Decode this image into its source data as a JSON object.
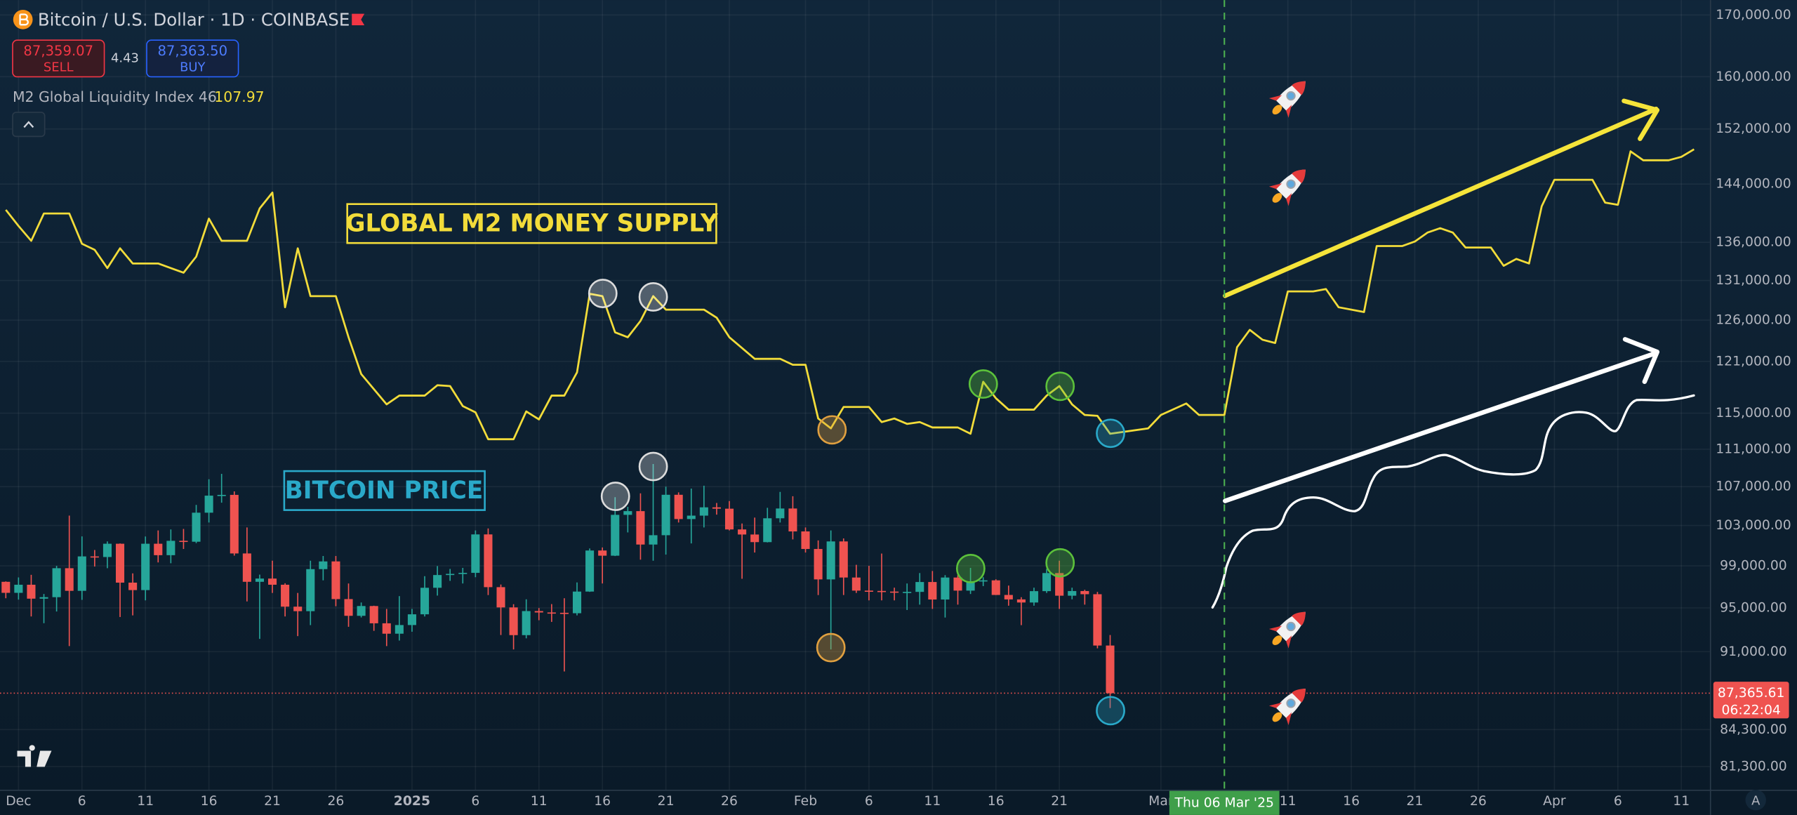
{
  "chart_data": {
    "type": "candlestick",
    "title": "Bitcoin / U.S. Dollar · 1D · COINBASE",
    "quote": {
      "sell": {
        "value": 87359.07,
        "label": "87,359.07"
      },
      "sell_label": "SELL",
      "spread": 4.43,
      "buy": {
        "value": 87363.5,
        "label": "87,363.50"
      },
      "buy_label": "BUY"
    },
    "log_scale": true,
    "grid": true,
    "up_color": "#26a69a",
    "down_color": "#ef5350",
    "xlim": [
      "2024-11-29T13:00:00Z",
      "2025-04-13T06:00:00Z"
    ],
    "ylim": [
      79380,
      172500
    ],
    "yticks": [
      {
        "value": 170000,
        "label": "170,000.00"
      },
      {
        "value": 160000,
        "label": "160,000.00"
      },
      {
        "value": 152000,
        "label": "152,000.00"
      },
      {
        "value": 144000,
        "label": "144,000.00"
      },
      {
        "value": 136000,
        "label": "136,000.00"
      },
      {
        "value": 131000,
        "label": "131,000.00"
      },
      {
        "value": 126000,
        "label": "126,000.00"
      },
      {
        "value": 121000,
        "label": "121,000.00"
      },
      {
        "value": 115000,
        "label": "115,000.00"
      },
      {
        "value": 111000,
        "label": "111,000.00"
      },
      {
        "value": 107000,
        "label": "107,000.00"
      },
      {
        "value": 103000,
        "label": "103,000.00"
      },
      {
        "value": 99000,
        "label": "99,000.00"
      },
      {
        "value": 95000,
        "label": "95,000.00"
      },
      {
        "value": 91000,
        "label": "91,000.00"
      },
      {
        "value": 84300,
        "label": "84,300.00"
      },
      {
        "value": 81300,
        "label": "81,300.00"
      }
    ],
    "xticks": [
      {
        "value": "2024-12-01",
        "label": "Dec"
      },
      {
        "value": "2024-12-06",
        "label": "6"
      },
      {
        "value": "2024-12-11",
        "label": "11"
      },
      {
        "value": "2024-12-16",
        "label": "16"
      },
      {
        "value": "2024-12-21",
        "label": "21"
      },
      {
        "value": "2024-12-26",
        "label": "26"
      },
      {
        "value": "2025-01-01",
        "label": "2025"
      },
      {
        "value": "2025-01-06",
        "label": "6"
      },
      {
        "value": "2025-01-11",
        "label": "11"
      },
      {
        "value": "2025-01-16",
        "label": "16"
      },
      {
        "value": "2025-01-21",
        "label": "21"
      },
      {
        "value": "2025-01-26",
        "label": "26"
      },
      {
        "value": "2025-02-01",
        "label": "Feb"
      },
      {
        "value": "2025-02-06",
        "label": "6"
      },
      {
        "value": "2025-02-11",
        "label": "11"
      },
      {
        "value": "2025-02-16",
        "label": "16"
      },
      {
        "value": "2025-02-21",
        "label": "21"
      },
      {
        "value": "2025-03-01",
        "label": "Mar"
      },
      {
        "value": "2025-03-11",
        "label": "11"
      },
      {
        "value": "2025-03-16",
        "label": "16"
      },
      {
        "value": "2025-03-21",
        "label": "21"
      },
      {
        "value": "2025-03-26",
        "label": "26"
      },
      {
        "value": "2025-04-01",
        "label": "Apr"
      },
      {
        "value": "2025-04-06",
        "label": "6"
      },
      {
        "value": "2025-04-11",
        "label": "11"
      }
    ],
    "x": [
      "2024-11-30",
      "2024-12-01",
      "2024-12-02",
      "2024-12-03",
      "2024-12-04",
      "2024-12-05",
      "2024-12-06",
      "2024-12-07",
      "2024-12-08",
      "2024-12-09",
      "2024-12-10",
      "2024-12-11",
      "2024-12-12",
      "2024-12-13",
      "2024-12-14",
      "2024-12-15",
      "2024-12-16",
      "2024-12-17",
      "2024-12-18",
      "2024-12-19",
      "2024-12-20",
      "2024-12-21",
      "2024-12-22",
      "2024-12-23",
      "2024-12-24",
      "2024-12-25",
      "2024-12-26",
      "2024-12-27",
      "2024-12-28",
      "2024-12-29",
      "2024-12-30",
      "2024-12-31",
      "2025-01-01",
      "2025-01-02",
      "2025-01-03",
      "2025-01-04",
      "2025-01-05",
      "2025-01-06",
      "2025-01-07",
      "2025-01-08",
      "2025-01-09",
      "2025-01-10",
      "2025-01-11",
      "2025-01-12",
      "2025-01-13",
      "2025-01-14",
      "2025-01-15",
      "2025-01-16",
      "2025-01-17",
      "2025-01-18",
      "2025-01-19",
      "2025-01-20",
      "2025-01-21",
      "2025-01-22",
      "2025-01-23",
      "2025-01-24",
      "2025-01-25",
      "2025-01-26",
      "2025-01-27",
      "2025-01-28",
      "2025-01-29",
      "2025-01-30",
      "2025-01-31",
      "2025-02-01",
      "2025-02-02",
      "2025-02-03",
      "2025-02-04",
      "2025-02-05",
      "2025-02-06",
      "2025-02-07",
      "2025-02-08",
      "2025-02-09",
      "2025-02-10",
      "2025-02-11",
      "2025-02-12",
      "2025-02-13",
      "2025-02-14",
      "2025-02-15",
      "2025-02-16",
      "2025-02-17",
      "2025-02-18",
      "2025-02-19",
      "2025-02-20",
      "2025-02-21",
      "2025-02-22",
      "2025-02-23",
      "2025-02-24",
      "2025-02-25"
    ],
    "open": [
      97460,
      96410,
      97180,
      95860,
      96000,
      98770,
      96600,
      99920,
      99860,
      101170,
      97380,
      96670,
      101170,
      100040,
      101460,
      101370,
      104300,
      106060,
      106140,
      100210,
      97460,
      97770,
      97180,
      95110,
      94690,
      98680,
      99430,
      95820,
      94260,
      95170,
      93570,
      92620,
      93410,
      94400,
      96890,
      98110,
      98220,
      98320,
      102100,
      96950,
      95040,
      92490,
      94700,
      94570,
      94540,
      94500,
      96530,
      100500,
      99990,
      104080,
      104460,
      101090,
      102020,
      106150,
      103650,
      104000,
      104850,
      104710,
      102600,
      102090,
      101330,
      103730,
      104730,
      102400,
      100650,
      97690,
      101400,
      97870,
      96620,
      96590,
      96530,
      96480,
      96500,
      97440,
      95780,
      97870,
      96620,
      97510,
      97600,
      96210,
      95790,
      95500,
      96570,
      98300,
      96140,
      96580,
      96280,
      91550
    ],
    "high": [
      97500,
      97880,
      98130,
      96300,
      99000,
      104000,
      101900,
      100550,
      101400,
      101200,
      98270,
      101890,
      102500,
      102600,
      102650,
      105100,
      107780,
      108350,
      106500,
      102800,
      98150,
      99500,
      97320,
      96400,
      99500,
      99960,
      99960,
      97300,
      95500,
      95200,
      94900,
      96100,
      94900,
      98000,
      98980,
      98700,
      98800,
      102500,
      102700,
      97200,
      95340,
      95800,
      94980,
      95350,
      95900,
      97400,
      100700,
      100800,
      105900,
      104900,
      106300,
      109400,
      107000,
      106400,
      106800,
      107100,
      105300,
      105500,
      103200,
      103800,
      104800,
      106450,
      106000,
      102800,
      101500,
      102500,
      101700,
      99100,
      99000,
      100200,
      96900,
      97300,
      98300,
      98500,
      98100,
      98100,
      98800,
      97900,
      97700,
      97100,
      96000,
      96900,
      98700,
      99500,
      96900,
      96700,
      96500,
      92500
    ],
    "low": [
      95900,
      95770,
      94200,
      93580,
      94660,
      91500,
      95750,
      98930,
      98770,
      94150,
      94300,
      95700,
      99330,
      99250,
      100650,
      101230,
      103300,
      105330,
      100000,
      95600,
      92150,
      96400,
      94200,
      92400,
      93400,
      97600,
      95150,
      93250,
      94110,
      92880,
      91500,
      92000,
      92800,
      94200,
      96150,
      97550,
      97300,
      97900,
      96200,
      92500,
      91200,
      92200,
      93850,
      93700,
      89250,
      94300,
      96500,
      97300,
      99950,
      102300,
      99600,
      99500,
      100100,
      103300,
      101200,
      102800,
      104100,
      102500,
      97750,
      100300,
      101300,
      103300,
      101600,
      100300,
      96200,
      91200,
      96200,
      96400,
      95700,
      95700,
      95700,
      94800,
      95300,
      94900,
      94100,
      95300,
      96300,
      97050,
      96200,
      95200,
      93400,
      95200,
      96400,
      94900,
      95800,
      95300,
      91300,
      86100
    ],
    "close": [
      96410,
      97180,
      95860,
      96000,
      98770,
      96600,
      99920,
      99860,
      101170,
      97380,
      96670,
      101170,
      100040,
      101460,
      101370,
      104300,
      106060,
      106140,
      100210,
      97460,
      97770,
      97180,
      95110,
      94690,
      98680,
      99430,
      95820,
      94260,
      95170,
      93570,
      92620,
      93410,
      94400,
      96890,
      98110,
      98220,
      98320,
      102100,
      96950,
      95040,
      92490,
      94700,
      94570,
      94540,
      94500,
      96530,
      100500,
      99990,
      104080,
      104460,
      101090,
      102020,
      106150,
      103650,
      104000,
      104850,
      104710,
      102600,
      102090,
      101330,
      103730,
      104730,
      102400,
      100650,
      97690,
      101400,
      97870,
      96620,
      96590,
      96530,
      96480,
      96500,
      97440,
      95780,
      97870,
      96620,
      97510,
      97600,
      96210,
      95790,
      95500,
      96570,
      98300,
      96140,
      96580,
      96280,
      91550,
      87365.61
    ],
    "last_price": {
      "value": 87365.61,
      "label": "87,365.61"
    },
    "countdown": "06:22:04",
    "crosshair": {
      "value": "2025-03-06",
      "label": "Thu 06 Mar '25"
    },
    "series": [
      {
        "name": "M2 Global Liquidity Index 46",
        "last_value": 107.97,
        "color": "#f2dc3a",
        "x": [
          "2024-11-30",
          "2024-12-01",
          "2024-12-02",
          "2024-12-03",
          "2024-12-05",
          "2024-12-06",
          "2024-12-07",
          "2024-12-08",
          "2024-12-09",
          "2024-12-10",
          "2024-12-12",
          "2024-12-14",
          "2024-12-15",
          "2024-12-16",
          "2024-12-17",
          "2024-12-19",
          "2024-12-20",
          "2024-12-21",
          "2024-12-22",
          "2024-12-23",
          "2024-12-24",
          "2024-12-26",
          "2024-12-27",
          "2024-12-28",
          "2024-12-30",
          "2024-12-31",
          "2025-01-02",
          "2025-01-03",
          "2025-01-04",
          "2025-01-05",
          "2025-01-06",
          "2025-01-07",
          "2025-01-09",
          "2025-01-10",
          "2025-01-11",
          "2025-01-12",
          "2025-01-13",
          "2025-01-14",
          "2025-01-15",
          "2025-01-16",
          "2025-01-17",
          "2025-01-18",
          "2025-01-19",
          "2025-01-20",
          "2025-01-21",
          "2025-01-24",
          "2025-01-25",
          "2025-01-26",
          "2025-01-28",
          "2025-01-30",
          "2025-01-31",
          "2025-02-01",
          "2025-02-02",
          "2025-02-03",
          "2025-02-04",
          "2025-02-06",
          "2025-02-07",
          "2025-02-08",
          "2025-02-09",
          "2025-02-10",
          "2025-02-11",
          "2025-02-13",
          "2025-02-14",
          "2025-02-15",
          "2025-02-16",
          "2025-02-17",
          "2025-02-19",
          "2025-02-20",
          "2025-02-21",
          "2025-02-22",
          "2025-02-23",
          "2025-02-24",
          "2025-02-25",
          "2025-02-28",
          "2025-03-01",
          "2025-03-03",
          "2025-03-04",
          "2025-03-06",
          "2025-03-07",
          "2025-03-08",
          "2025-03-09",
          "2025-03-10",
          "2025-03-11",
          "2025-03-13",
          "2025-03-14",
          "2025-03-15",
          "2025-03-17",
          "2025-03-18",
          "2025-03-20",
          "2025-03-21",
          "2025-03-22",
          "2025-03-23",
          "2025-03-24",
          "2025-03-25",
          "2025-03-27",
          "2025-03-28",
          "2025-03-29",
          "2025-03-30",
          "2025-03-31",
          "2025-04-01",
          "2025-04-04",
          "2025-04-05",
          "2025-04-06",
          "2025-04-07",
          "2025-04-08",
          "2025-04-10",
          "2025-04-11",
          "2025-04-12"
        ],
        "values": [
          140400,
          138200,
          136200,
          139900,
          139900,
          135800,
          135000,
          132600,
          135200,
          133200,
          133200,
          132000,
          134100,
          139200,
          136200,
          136200,
          140600,
          142800,
          127600,
          135200,
          129000,
          129000,
          123900,
          119500,
          116000,
          117000,
          117000,
          118200,
          118100,
          115800,
          115100,
          112100,
          112100,
          115200,
          114300,
          117000,
          117000,
          119700,
          129300,
          129000,
          124500,
          123900,
          125900,
          129000,
          127300,
          127300,
          126300,
          123900,
          121300,
          121300,
          120600,
          120600,
          114400,
          113300,
          115700,
          115700,
          114000,
          114400,
          113800,
          114000,
          113400,
          113400,
          112700,
          118600,
          116700,
          115400,
          115400,
          117000,
          118100,
          116000,
          114800,
          114700,
          112700,
          113300,
          114800,
          116100,
          114800,
          114800,
          122700,
          124800,
          123600,
          123200,
          129600,
          129600,
          129900,
          127600,
          127000,
          135500,
          135500,
          136100,
          137300,
          137900,
          137300,
          135300,
          135300,
          132900,
          133800,
          133200,
          140900,
          144600,
          144600,
          141400,
          141100,
          148700,
          147400,
          147400,
          147900,
          149000
        ]
      }
    ],
    "annotations": [
      "GLOBAL M2 MONEY SUPPLY",
      "BITCOIN PRICE"
    ],
    "auto_scale_button": "A"
  }
}
